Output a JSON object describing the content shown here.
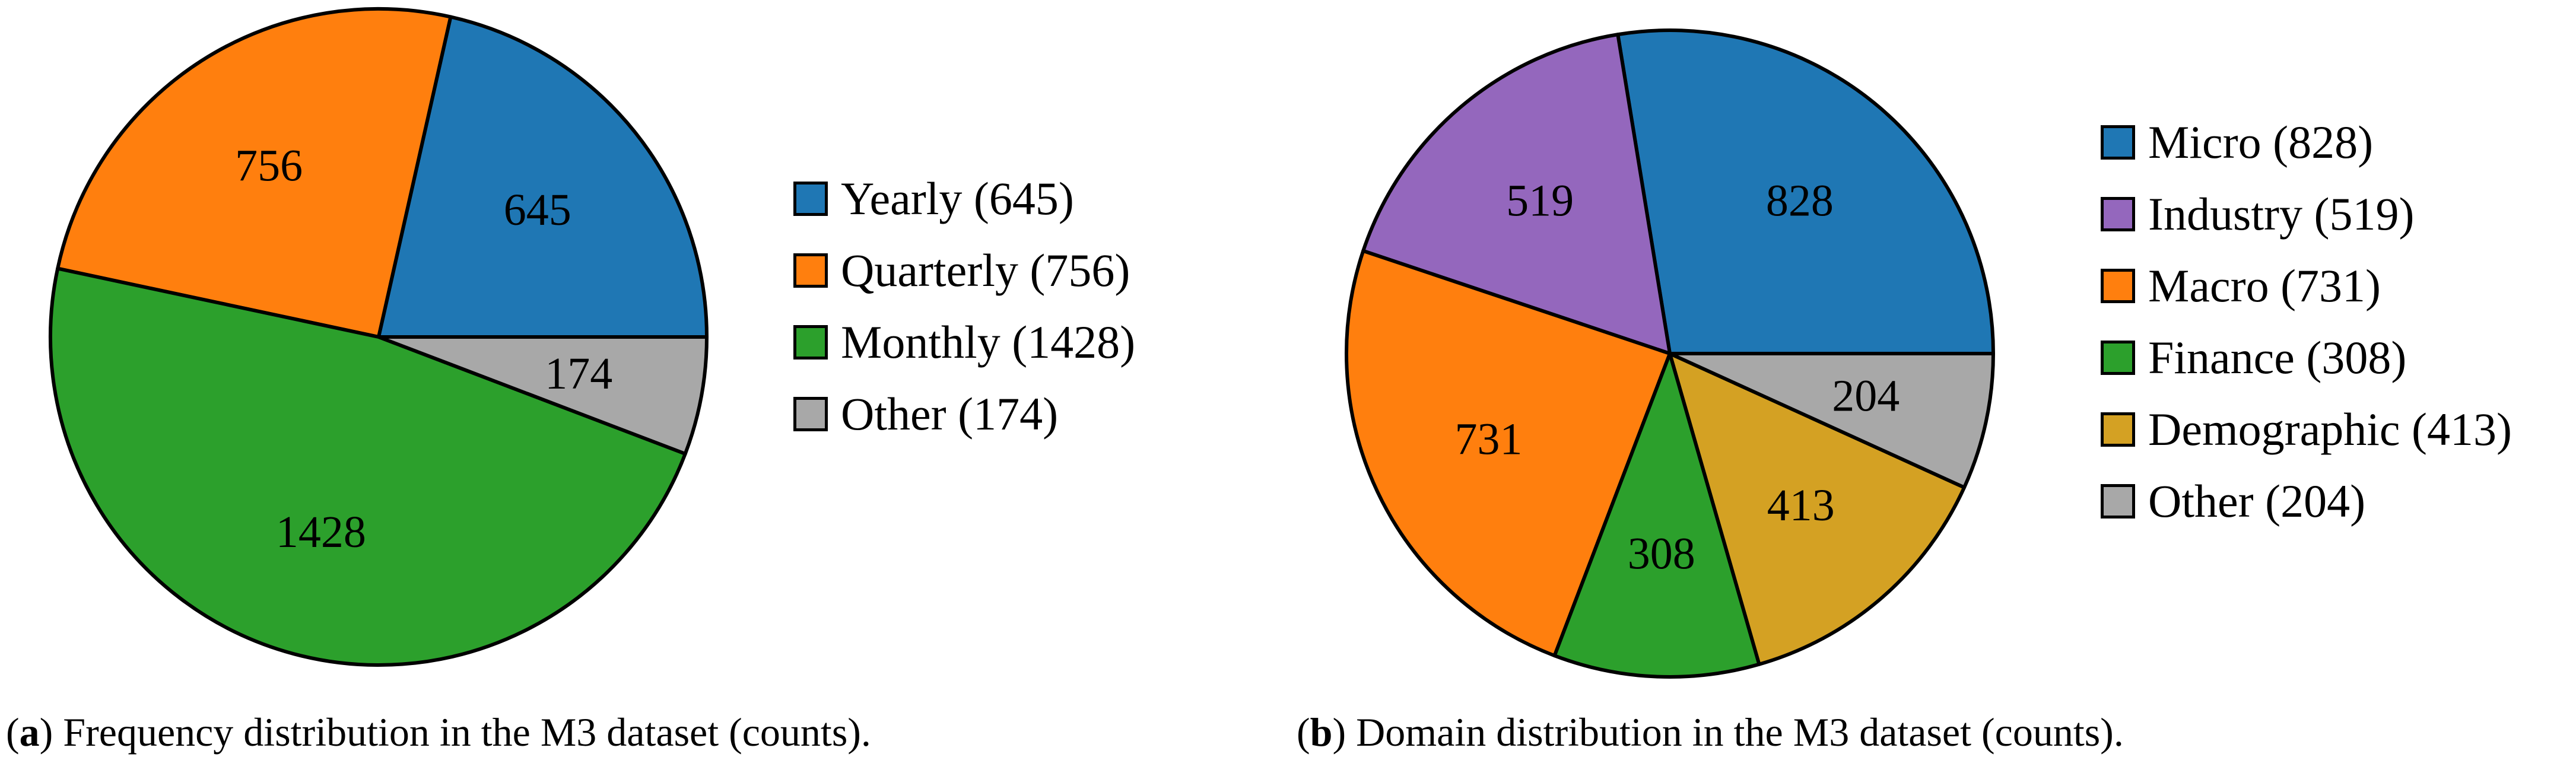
{
  "chart_data": [
    {
      "type": "pie",
      "panel": "a",
      "slices": [
        {
          "label": "Yearly",
          "value": 645,
          "color": "#1f77b4",
          "legend": "Yearly (645)"
        },
        {
          "label": "Quarterly",
          "value": 756,
          "color": "#ff7f0e",
          "legend": "Quarterly (756)"
        },
        {
          "label": "Monthly",
          "value": 1428,
          "color": "#2ca02c",
          "legend": "Monthly (1428)"
        },
        {
          "label": "Other",
          "value": 174,
          "color": "#a8a8a8",
          "legend": "Other (174)"
        }
      ],
      "caption_letter": "a",
      "caption_text": ") Frequency distribution in the M3 dataset (counts).",
      "legend_placement": "right",
      "start_angle_deg": 0,
      "direction": "counterclockwise"
    },
    {
      "type": "pie",
      "panel": "b",
      "slices": [
        {
          "label": "Micro",
          "value": 828,
          "color": "#1f77b4",
          "legend": "Micro (828)"
        },
        {
          "label": "Industry",
          "value": 519,
          "color": "#9467bd",
          "legend": "Industry (519)"
        },
        {
          "label": "Macro",
          "value": 731,
          "color": "#ff7f0e",
          "legend": "Macro (731)"
        },
        {
          "label": "Finance",
          "value": 308,
          "color": "#2ca02c",
          "legend": "Finance (308)"
        },
        {
          "label": "Demographic",
          "value": 413,
          "color": "#d4a123",
          "legend": "Demographic (413)"
        },
        {
          "label": "Other",
          "value": 204,
          "color": "#a8a8a8",
          "legend": "Other (204)"
        }
      ],
      "caption_letter": "b",
      "caption_text": ") Domain distribution in the M3 dataset (counts).",
      "legend_placement": "right",
      "start_angle_deg": 0,
      "direction": "counterclockwise"
    }
  ]
}
